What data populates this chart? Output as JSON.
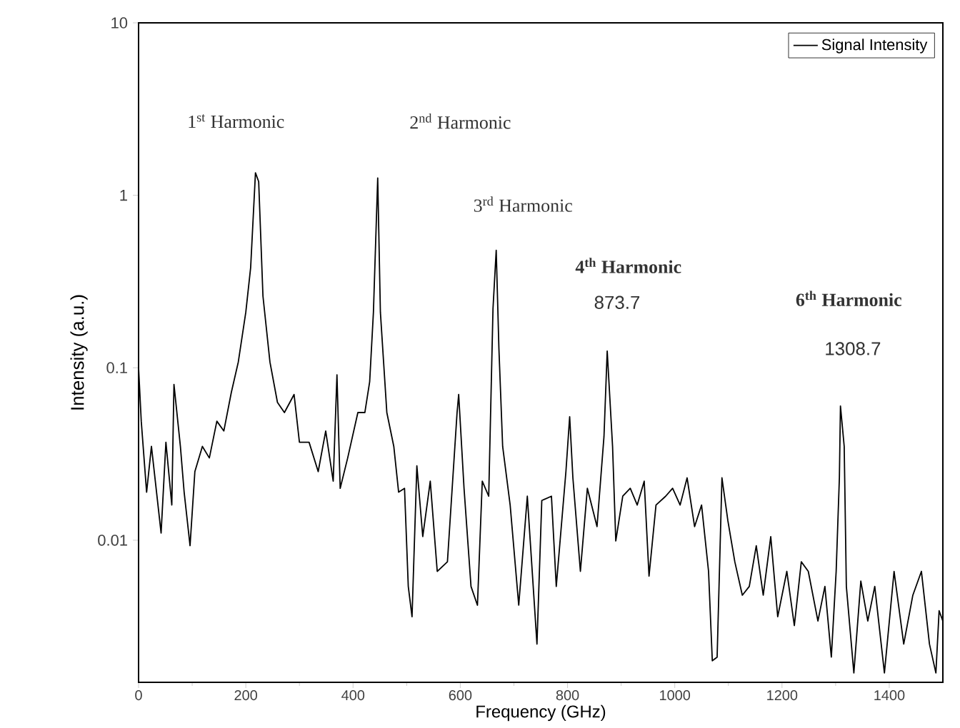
{
  "chart_data": {
    "type": "line",
    "xlabel": "Frequency (GHz)",
    "ylabel": "Intensity (a.u.)",
    "xlim": [
      0,
      1500
    ],
    "ylim": [
      0.0015,
      10
    ],
    "xticks": [
      0,
      200,
      400,
      600,
      800,
      1000,
      1200,
      1400
    ],
    "yticks": [
      0.01,
      0.1,
      1,
      10
    ],
    "log": "y",
    "legend": "top right",
    "grid": false,
    "marker": "none",
    "line_style": "solid",
    "annotations": [
      "1$^{st}$ Harmonic",
      "2$^{nd}$ Harmonic",
      "3$^{rd}$ Harmonic",
      "4$^{th}$ Harmonic",
      "873.7",
      "6$^{th}$ Harmonic",
      "1308.7"
    ],
    "series": [
      {
        "name": "Signal Intensity",
        "color": "#000000",
        "x": [
          0,
          5,
          15,
          24,
          42,
          51,
          62,
          66,
          78,
          85,
          96,
          105,
          119,
          132,
          146,
          159,
          173,
          186,
          200,
          209,
          218,
          224,
          232,
          245,
          259,
          272,
          290,
          300,
          318,
          335,
          349,
          363,
          370,
          376,
          390,
          409,
          422,
          431,
          438,
          446,
          451,
          463,
          476,
          485,
          496,
          503,
          510,
          519,
          530,
          544,
          557,
          576,
          594,
          597,
          607,
          620,
          632,
          641,
          653,
          661,
          667,
          672,
          679,
          693,
          709,
          725,
          743,
          752,
          770,
          779,
          797,
          804,
          810,
          824,
          837,
          855,
          868,
          874,
          884,
          890,
          903,
          917,
          930,
          943,
          952,
          965,
          983,
          996,
          1010,
          1023,
          1037,
          1050,
          1063,
          1070,
          1079,
          1088,
          1099,
          1112,
          1126,
          1139,
          1152,
          1165,
          1179,
          1192,
          1209,
          1223,
          1236,
          1249,
          1267,
          1280,
          1292,
          1301,
          1307,
          1309,
          1316,
          1320,
          1334,
          1347,
          1360,
          1373,
          1391,
          1409,
          1427,
          1444,
          1460,
          1475,
          1487,
          1493,
          1500
        ],
        "values": [
          0.1,
          0.049,
          0.019,
          0.035,
          0.011,
          0.037,
          0.016,
          0.08,
          0.035,
          0.019,
          0.0093,
          0.025,
          0.035,
          0.03,
          0.049,
          0.043,
          0.072,
          0.108,
          0.21,
          0.38,
          1.35,
          1.2,
          0.26,
          0.108,
          0.063,
          0.055,
          0.07,
          0.037,
          0.037,
          0.025,
          0.043,
          0.022,
          0.091,
          0.02,
          0.03,
          0.055,
          0.055,
          0.083,
          0.21,
          1.26,
          0.21,
          0.055,
          0.035,
          0.019,
          0.02,
          0.0054,
          0.0036,
          0.027,
          0.0105,
          0.022,
          0.0066,
          0.0075,
          0.055,
          0.07,
          0.02,
          0.0054,
          0.0042,
          0.022,
          0.018,
          0.22,
          0.48,
          0.13,
          0.035,
          0.016,
          0.0042,
          0.018,
          0.0025,
          0.017,
          0.018,
          0.0054,
          0.025,
          0.052,
          0.023,
          0.0066,
          0.02,
          0.012,
          0.04,
          0.125,
          0.035,
          0.0099,
          0.018,
          0.02,
          0.016,
          0.022,
          0.0062,
          0.016,
          0.018,
          0.02,
          0.016,
          0.023,
          0.012,
          0.016,
          0.0066,
          0.002,
          0.0021,
          0.023,
          0.013,
          0.0075,
          0.0048,
          0.0054,
          0.0093,
          0.0048,
          0.0105,
          0.0036,
          0.0066,
          0.0032,
          0.0075,
          0.0066,
          0.0034,
          0.0054,
          0.0021,
          0.0066,
          0.023,
          0.06,
          0.035,
          0.0054,
          0.0017,
          0.0058,
          0.0034,
          0.0054,
          0.0017,
          0.0066,
          0.0025,
          0.0048,
          0.0066,
          0.0025,
          0.0017,
          0.0039,
          0.0034
        ]
      }
    ]
  }
}
